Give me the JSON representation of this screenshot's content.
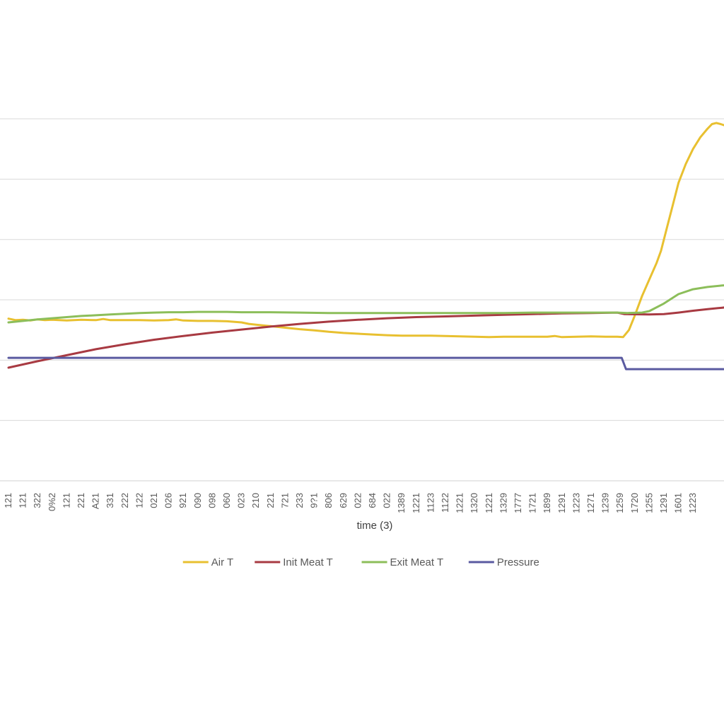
{
  "chart_data": {
    "type": "line",
    "title": "",
    "xlabel": "time (3)",
    "ylabel": "",
    "grid": true,
    "legend_position": "bottom",
    "categories": [
      "121",
      "121",
      "322",
      "0%2",
      "121",
      "221",
      "A21",
      "331",
      "222",
      "122",
      "021",
      "026",
      "921",
      "090",
      "098",
      "060",
      "023",
      "210",
      "221",
      "721",
      "233",
      "9?1",
      "806",
      "629",
      "022",
      "684",
      "022",
      "1389",
      "1221",
      "1123",
      "1122",
      "1221",
      "1320",
      "1221",
      "1329",
      "1777",
      "1721",
      "1899",
      "1291",
      "1223",
      "1271",
      "1239",
      "1259",
      "1720",
      "1255",
      "1291",
      "1601",
      "1223"
    ],
    "y_range": [
      0,
      100
    ],
    "series": [
      {
        "name": "Air T",
        "color": "#E8C030",
        "points": [
          [
            0,
            43
          ],
          [
            0.5,
            42.6
          ],
          [
            1,
            42.7
          ],
          [
            1.5,
            42.5
          ],
          [
            2,
            42.8
          ],
          [
            2.5,
            42.6
          ],
          [
            3,
            42.7
          ],
          [
            3.5,
            42.6
          ],
          [
            4,
            42.5
          ],
          [
            4.5,
            42.6
          ],
          [
            5,
            42.7
          ],
          [
            6,
            42.6
          ],
          [
            6.5,
            42.9
          ],
          [
            7,
            42.6
          ],
          [
            8,
            42.6
          ],
          [
            9,
            42.6
          ],
          [
            10,
            42.5
          ],
          [
            11,
            42.6
          ],
          [
            11.5,
            42.8
          ],
          [
            12,
            42.5
          ],
          [
            13,
            42.4
          ],
          [
            14,
            42.4
          ],
          [
            15,
            42.3
          ],
          [
            16,
            42
          ],
          [
            16.5,
            41.6
          ],
          [
            17,
            41.4
          ],
          [
            18,
            41
          ],
          [
            19,
            40.6
          ],
          [
            20,
            40.2
          ],
          [
            21,
            39.9
          ],
          [
            22,
            39.5
          ],
          [
            23,
            39.2
          ],
          [
            24,
            39
          ],
          [
            25,
            38.8
          ],
          [
            26,
            38.6
          ],
          [
            27,
            38.5
          ],
          [
            28,
            38.5
          ],
          [
            29,
            38.5
          ],
          [
            30,
            38.4
          ],
          [
            31,
            38.3
          ],
          [
            32,
            38.2
          ],
          [
            33,
            38.1
          ],
          [
            34,
            38.2
          ],
          [
            35,
            38.2
          ],
          [
            36,
            38.2
          ],
          [
            37,
            38.2
          ],
          [
            37.5,
            38.4
          ],
          [
            38,
            38.1
          ],
          [
            39,
            38.2
          ],
          [
            40,
            38.3
          ],
          [
            41,
            38.2
          ],
          [
            41.8,
            38.2
          ],
          [
            42.2,
            38.1
          ],
          [
            42.6,
            40
          ],
          [
            43,
            43.8
          ],
          [
            43.5,
            49
          ],
          [
            44,
            53.4
          ],
          [
            44.5,
            57.8
          ],
          [
            44.8,
            61
          ],
          [
            45.2,
            67
          ],
          [
            45.6,
            73
          ],
          [
            46,
            79
          ],
          [
            46.5,
            84
          ],
          [
            47,
            88
          ],
          [
            47.5,
            91.1
          ],
          [
            48,
            93.4
          ],
          [
            48.3,
            94.6
          ],
          [
            48.6,
            94.9
          ],
          [
            48.9,
            94.6
          ],
          [
            49.2,
            94.2
          ],
          [
            49.5,
            93.9
          ],
          [
            49.8,
            94.5
          ],
          [
            50,
            94.6
          ],
          [
            50.2,
            94.3
          ]
        ]
      },
      {
        "name": "Init Meat T",
        "color": "#A83A42",
        "points": [
          [
            0,
            30
          ],
          [
            2,
            31.7
          ],
          [
            4,
            33.3
          ],
          [
            6,
            34.9
          ],
          [
            8,
            36.2
          ],
          [
            10,
            37.4
          ],
          [
            12,
            38.4
          ],
          [
            14,
            39.3
          ],
          [
            16,
            40.1
          ],
          [
            18,
            40.9
          ],
          [
            20,
            41.6
          ],
          [
            22,
            42.2
          ],
          [
            24,
            42.7
          ],
          [
            26,
            43.1
          ],
          [
            28,
            43.4
          ],
          [
            30,
            43.6
          ],
          [
            32,
            43.8
          ],
          [
            34,
            44
          ],
          [
            36,
            44.2
          ],
          [
            38,
            44.4
          ],
          [
            40,
            44.5
          ],
          [
            41.8,
            44.6
          ],
          [
            42.3,
            44.2
          ],
          [
            44,
            44.1
          ],
          [
            45,
            44.2
          ],
          [
            46,
            44.6
          ],
          [
            47,
            45.1
          ],
          [
            48,
            45.5
          ],
          [
            49,
            45.9
          ],
          [
            50,
            46.3
          ],
          [
            50.3,
            46.4
          ]
        ]
      },
      {
        "name": "Exit Meat T",
        "color": "#8CBE5A",
        "points": [
          [
            0,
            42
          ],
          [
            1,
            42.4
          ],
          [
            2,
            42.8
          ],
          [
            3,
            43.1
          ],
          [
            4,
            43.4
          ],
          [
            5,
            43.7
          ],
          [
            6,
            43.9
          ],
          [
            7,
            44.1
          ],
          [
            8,
            44.3
          ],
          [
            9,
            44.5
          ],
          [
            10,
            44.6
          ],
          [
            11,
            44.7
          ],
          [
            12,
            44.7
          ],
          [
            13,
            44.8
          ],
          [
            14,
            44.8
          ],
          [
            15,
            44.8
          ],
          [
            16,
            44.7
          ],
          [
            17,
            44.7
          ],
          [
            18,
            44.7
          ],
          [
            20,
            44.6
          ],
          [
            22,
            44.5
          ],
          [
            24,
            44.5
          ],
          [
            26,
            44.5
          ],
          [
            28,
            44.5
          ],
          [
            30,
            44.5
          ],
          [
            32,
            44.5
          ],
          [
            34,
            44.5
          ],
          [
            36,
            44.6
          ],
          [
            38,
            44.6
          ],
          [
            40,
            44.6
          ],
          [
            41.8,
            44.6
          ],
          [
            42.5,
            44.5
          ],
          [
            43.5,
            44.6
          ],
          [
            44,
            45
          ],
          [
            45,
            47
          ],
          [
            46,
            49.5
          ],
          [
            47,
            50.8
          ],
          [
            48,
            51.4
          ],
          [
            49,
            51.8
          ],
          [
            50,
            52.1
          ],
          [
            50.2,
            52.2
          ]
        ]
      },
      {
        "name": "Pressure",
        "color": "#5A5AA0",
        "points": [
          [
            0,
            32.6
          ],
          [
            42.1,
            32.6
          ],
          [
            42.4,
            29.6
          ],
          [
            50.3,
            29.6
          ]
        ]
      }
    ]
  }
}
